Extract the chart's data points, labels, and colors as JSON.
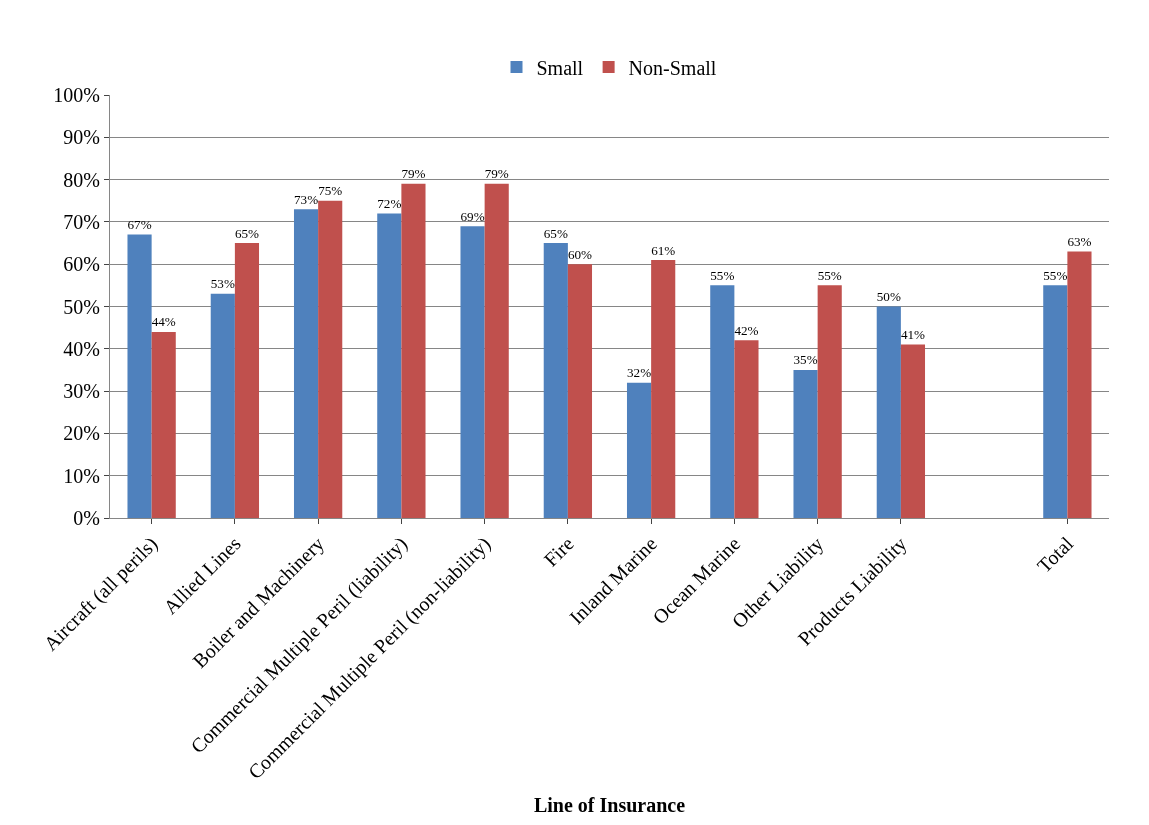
{
  "chart_data": {
    "type": "bar",
    "xlabel": "Line of Insurance",
    "categories": [
      "Aircraft (all perils)",
      "Allied Lines",
      "Boiler and Machinery",
      "Commercial Multiple Peril (liability)",
      "Commercial Multiple Peril (non-liability)",
      "Fire",
      "Inland Marine",
      "Ocean Marine",
      "Other Liability",
      "Products Liability",
      null,
      "Total"
    ],
    "series": [
      {
        "name": "Small",
        "color": "#4f81bd",
        "values": [
          67,
          53,
          73,
          72,
          69,
          65,
          32,
          55,
          35,
          50,
          null,
          55
        ],
        "value_labels": [
          "67%",
          "53%",
          "73%",
          "72%",
          "69%",
          "65%",
          "32%",
          "55%",
          "35%",
          "50%",
          null,
          "55%"
        ]
      },
      {
        "name": "Non-Small",
        "color": "#c0504d",
        "values": [
          44,
          65,
          75,
          79,
          79,
          60,
          61,
          42,
          55,
          41,
          null,
          63
        ],
        "value_labels": [
          "44%",
          "65%",
          "75%",
          "79%",
          "79%",
          "60%",
          "61%",
          "42%",
          "55%",
          "41%",
          null,
          "63%"
        ]
      }
    ],
    "ylim": [
      0,
      100
    ],
    "yticks": [
      {
        "value": 0,
        "label": "0%"
      },
      {
        "value": 10,
        "label": "10%"
      },
      {
        "value": 20,
        "label": "20%"
      },
      {
        "value": 30,
        "label": "30%"
      },
      {
        "value": 40,
        "label": "40%"
      },
      {
        "value": 50,
        "label": "50%"
      },
      {
        "value": 60,
        "label": "60%"
      },
      {
        "value": 70,
        "label": "70%"
      },
      {
        "value": 80,
        "label": "80%"
      },
      {
        "value": 90,
        "label": "90%"
      },
      {
        "value": 100,
        "label": "100%"
      }
    ],
    "grid": "y",
    "legend": "top"
  }
}
